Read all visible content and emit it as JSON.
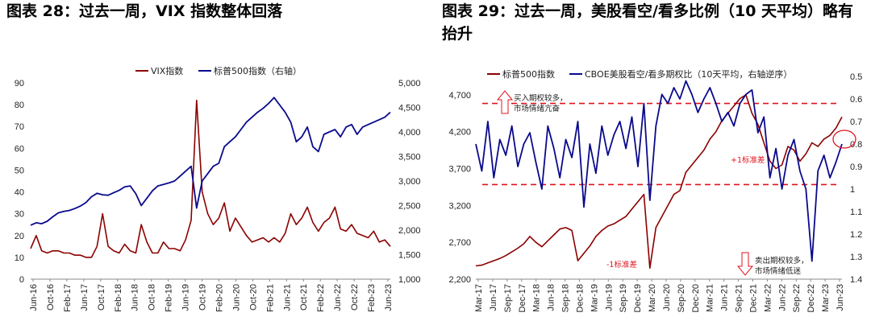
{
  "left_title": "图表 28：过去一周，VIX 指数整体回落",
  "right_title": "图表 29：过去一周，美股看空/看多比例（10 天平均）略有抬升",
  "colors": {
    "red": "#8B0000",
    "blue": "#0A0A8C",
    "dash": "#E0141E",
    "annot_red": "#E0141E"
  },
  "chart_data": [
    {
      "type": "line",
      "legend": [
        "VIX指数",
        "标普500指数（右轴）"
      ],
      "legend_placement": "top-center",
      "x_tick_labels": [
        "Jun-16",
        "Oct-16",
        "Feb-17",
        "Jun-17",
        "Oct-17",
        "Feb-18",
        "Jun-18",
        "Oct-18",
        "Feb-19",
        "Jun-19",
        "Oct-19",
        "Feb-20",
        "Jun-20",
        "Oct-20",
        "Feb-21",
        "Jun-21",
        "Oct-21",
        "Feb-22",
        "Jun-22",
        "Oct-22",
        "Feb-23",
        "Jun-23"
      ],
      "y_left_ticks": [
        "0",
        "10",
        "20",
        "30",
        "40",
        "50",
        "60",
        "70",
        "80",
        "90"
      ],
      "y_right_ticks": [
        "1,000",
        "1,500",
        "2,000",
        "2,500",
        "3,000",
        "3,500",
        "4,000",
        "4,500",
        "5,000"
      ],
      "ylim_left": [
        0,
        90
      ],
      "ylim_right": [
        1000,
        5000
      ],
      "series": [
        {
          "name": "VIX指数",
          "axis": "left",
          "values": [
            14,
            20,
            13,
            12,
            13,
            13,
            12,
            12,
            11,
            11,
            10,
            10,
            15,
            30,
            15,
            13,
            12,
            16,
            13,
            12,
            25,
            17,
            12,
            12,
            17,
            14,
            14,
            13,
            18,
            27,
            82,
            40,
            30,
            25,
            28,
            35,
            22,
            28,
            24,
            20,
            17,
            18,
            19,
            17,
            19,
            17,
            21,
            30,
            25,
            28,
            33,
            26,
            22,
            26,
            28,
            33,
            23,
            22,
            25,
            21,
            20,
            19,
            22,
            17,
            18,
            15
          ]
        },
        {
          "name": "标普500指数（右轴）",
          "axis": "right",
          "values": [
            2100,
            2150,
            2130,
            2180,
            2270,
            2350,
            2380,
            2400,
            2440,
            2490,
            2560,
            2680,
            2750,
            2720,
            2710,
            2760,
            2810,
            2880,
            2900,
            2740,
            2500,
            2650,
            2800,
            2900,
            2930,
            2960,
            3000,
            3100,
            3200,
            3300,
            2450,
            3000,
            3150,
            3300,
            3360,
            3700,
            3800,
            3900,
            4050,
            4200,
            4300,
            4400,
            4480,
            4580,
            4700,
            4550,
            4400,
            4200,
            3800,
            3900,
            4100,
            3700,
            3600,
            3950,
            4000,
            4050,
            3900,
            4100,
            4150,
            3950,
            4100,
            4150,
            4200,
            4250,
            4300,
            4400
          ]
        }
      ]
    },
    {
      "type": "line",
      "legend": [
        "标普500指数",
        "CBOE美股看空/看多期权比（10天平均，右轴逆序）"
      ],
      "legend_placement": "top",
      "x_tick_labels": [
        "Mar-17",
        "Jun-17",
        "Sep-17",
        "Dec-17",
        "Mar-18",
        "Jun-18",
        "Sep-18",
        "Dec-18",
        "Mar-19",
        "Jun-19",
        "Sep-19",
        "Dec-19",
        "Mar-20",
        "Jun-20",
        "Sep-20",
        "Dec-20",
        "Mar-21",
        "Jun-21",
        "Sep-21",
        "Dec-21",
        "Mar-22",
        "Jun-22",
        "Sep-22",
        "Dec-22",
        "Mar-23",
        "Jun-23"
      ],
      "y_left_ticks": [
        "2,200",
        "2,700",
        "3,200",
        "3,700",
        "4,200",
        "4,700"
      ],
      "y_right_ticks": [
        "0.5",
        "0.6",
        "0.7",
        "0.8",
        "0.9",
        "1",
        "1.1",
        "1.2",
        "1.3",
        "1.4"
      ],
      "ylim_left": [
        2200,
        4950
      ],
      "ylim_right_reversed": [
        0.5,
        1.4
      ],
      "reference_lines": [
        {
          "value": 0.62,
          "axis": "right",
          "label": "+1标准差"
        },
        {
          "value": 0.98,
          "axis": "right",
          "label": "-1标准差"
        }
      ],
      "annotations": [
        "买入期权较多，",
        "市场情绪亢奋",
        "卖出期权较多，",
        "市场情绪低迷"
      ],
      "series": [
        {
          "name": "标普500指数",
          "axis": "left",
          "values": [
            2380,
            2390,
            2420,
            2450,
            2480,
            2520,
            2570,
            2620,
            2680,
            2780,
            2700,
            2640,
            2720,
            2800,
            2880,
            2900,
            2860,
            2450,
            2550,
            2650,
            2780,
            2860,
            2920,
            2950,
            3000,
            3050,
            3150,
            3250,
            3350,
            2350,
            2900,
            3050,
            3200,
            3350,
            3400,
            3650,
            3750,
            3850,
            3950,
            4100,
            4200,
            4350,
            4450,
            4550,
            4650,
            4700,
            4450,
            4300,
            4050,
            3800,
            3700,
            3750,
            4000,
            3950,
            3800,
            3900,
            4050,
            4000,
            4100,
            4150,
            4250,
            4400
          ]
        },
        {
          "name": "CBOE美股看空/看多期权比（10天平均，右轴逆序）",
          "axis": "right",
          "values": [
            0.8,
            0.92,
            0.7,
            0.95,
            0.78,
            0.85,
            0.72,
            0.9,
            0.8,
            0.75,
            0.88,
            1.0,
            0.72,
            0.82,
            0.95,
            0.78,
            0.86,
            0.7,
            1.08,
            0.8,
            0.93,
            0.72,
            0.85,
            0.76,
            0.7,
            0.82,
            0.68,
            0.9,
            0.62,
            1.05,
            0.72,
            0.58,
            0.62,
            0.55,
            0.6,
            0.52,
            0.58,
            0.66,
            0.6,
            0.55,
            0.62,
            0.7,
            0.66,
            0.72,
            0.62,
            0.58,
            0.56,
            0.75,
            0.68,
            0.95,
            0.82,
            1.0,
            0.85,
            0.78,
            0.92,
            1.0,
            1.32,
            0.92,
            0.85,
            0.95,
            0.88,
            0.8
          ]
        }
      ]
    }
  ]
}
